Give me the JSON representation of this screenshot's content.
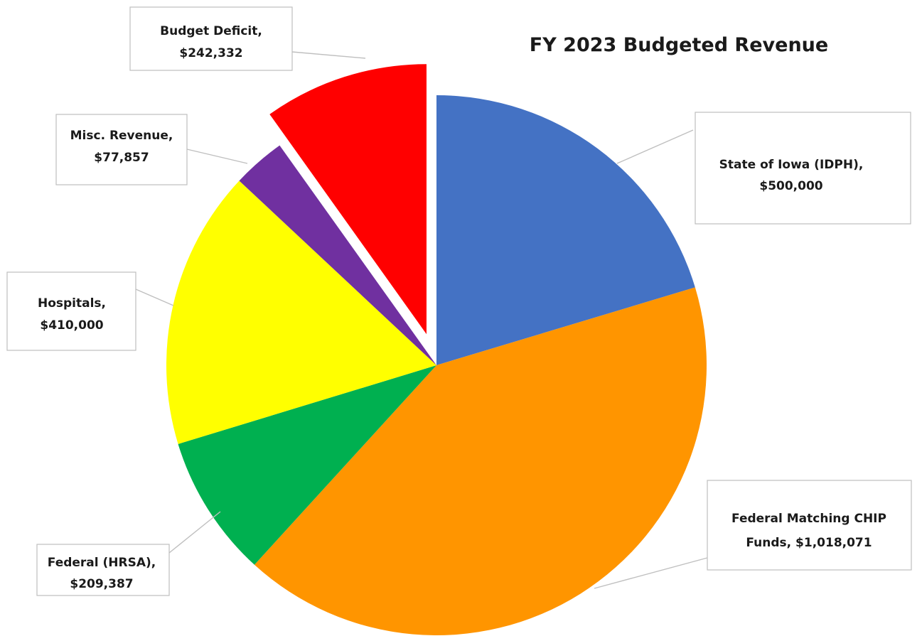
{
  "chart_data": {
    "type": "pie",
    "title": "FY 2023 Budgeted Revenue",
    "categories": [
      "State of Iowa (IDPH),",
      "Federal Matching CHIP Funds,",
      "Federal (HRSA),",
      "Hospitals,",
      "Misc. Revenue,",
      "Budget Deficit,"
    ],
    "values": [
      500000,
      1018071,
      209387,
      410000,
      77857,
      242332
    ],
    "value_labels": [
      "$500,000",
      "$1,018,071",
      "$209,387",
      "$410,000",
      "$77,857",
      "$242,332"
    ],
    "colors": [
      "#4472C4",
      "#FF9500",
      "#00B050",
      "#FFFF00",
      "#7030A0",
      "#FF0000"
    ],
    "exploded": [
      false,
      false,
      false,
      false,
      false,
      true
    ],
    "start_angle": "12 o'clock",
    "direction": "clockwise",
    "legend": "none"
  }
}
